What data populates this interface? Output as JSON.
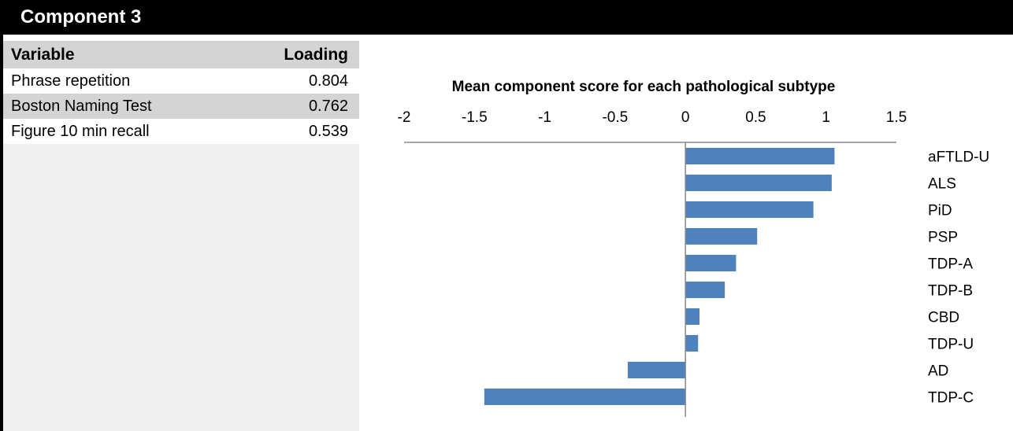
{
  "panel": {
    "title": "Component 3",
    "table": {
      "headers": [
        "Variable",
        "Loading"
      ],
      "rows": [
        {
          "variable": "Phrase repetition",
          "loading": "0.804"
        },
        {
          "variable": "Boston Naming Test",
          "loading": "0.762"
        },
        {
          "variable": "Figure 10 min recall",
          "loading": "0.539"
        }
      ]
    }
  },
  "chart_data": {
    "type": "bar",
    "orientation": "horizontal",
    "title": "Mean component score for each pathological subtype",
    "categories": [
      "aFTLD-U",
      "ALS",
      "PiD",
      "PSP",
      "TDP-A",
      "TDP-B",
      "CBD",
      "TDP-U",
      "AD",
      "TDP-C"
    ],
    "values": [
      1.06,
      1.04,
      0.91,
      0.51,
      0.36,
      0.28,
      0.1,
      0.09,
      -0.41,
      -1.43
    ],
    "xlim": [
      -2,
      1.5
    ],
    "xticks": [
      "-2",
      "-1.5",
      "-1",
      "-0.5",
      "0",
      "0.5",
      "1",
      "1.5"
    ],
    "grid": false,
    "bar_color": "#4f81bd"
  }
}
